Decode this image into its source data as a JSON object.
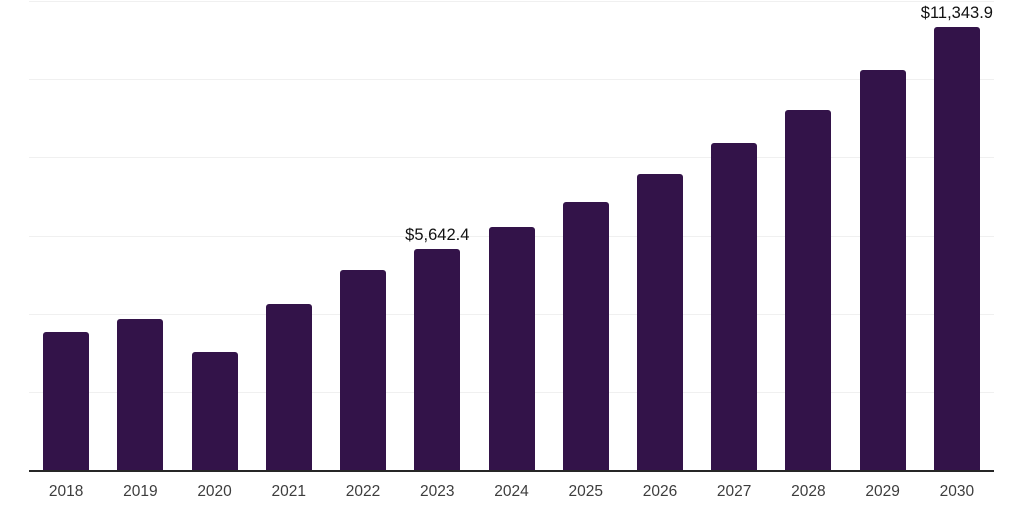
{
  "chart_data": {
    "type": "bar",
    "categories": [
      "2018",
      "2019",
      "2020",
      "2021",
      "2022",
      "2023",
      "2024",
      "2025",
      "2026",
      "2027",
      "2028",
      "2029",
      "2030"
    ],
    "values": [
      3530,
      3860,
      3030,
      4260,
      5120,
      5642.4,
      6210,
      6860,
      7570,
      8370,
      9210,
      10230,
      11343.9
    ],
    "title": "",
    "xlabel": "",
    "ylabel": "",
    "ylim": [
      0,
      12000
    ],
    "grid_step": 2000,
    "grid": "horizontal-only",
    "legend": "none",
    "y_axis_labels_visible": false,
    "annotations": [
      {
        "category": "2023",
        "text": "$5,642.4"
      },
      {
        "category": "2030",
        "text": "$11,343.9"
      }
    ]
  },
  "colors": {
    "bar": "#331349",
    "gridline": "#f0f0f0",
    "axis_line": "#262626",
    "tick_label": "#3d3d3d",
    "annotation": "#111111",
    "background": "#ffffff"
  }
}
